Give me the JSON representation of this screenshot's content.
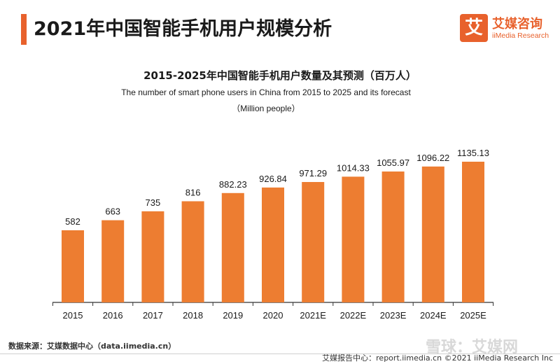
{
  "page": {
    "title": "2021年中国智能手机用户规模分析",
    "source": "数据来源：艾媒数据中心（data.iimedia.cn）",
    "footer": "艾媒报告中心：report.iimedia.cn   ©2021  iiMedia Research  Inc",
    "watermark": "雪球：艾媒网"
  },
  "logo": {
    "glyph": "艾",
    "cn": "艾媒咨询",
    "en": "iiMedia Research",
    "color": "#e8612c"
  },
  "chart_data": {
    "type": "bar",
    "title": "2015-2025年中国智能手机用户数量及其预测（百万人）",
    "subtitle": "The number of smart phone users in China from 2015 to 2025 and its forecast",
    "unit": "（Million people）",
    "categories": [
      "2015",
      "2016",
      "2017",
      "2018",
      "2019",
      "2020",
      "2021E",
      "2022E",
      "2023E",
      "2024E",
      "2025E"
    ],
    "values": [
      582,
      663,
      735,
      816,
      882.23,
      926.84,
      971.29,
      1014.33,
      1055.97,
      1096.22,
      1135.13
    ],
    "value_labels": [
      "582",
      "663",
      "735",
      "816",
      "882.23",
      "926.84",
      "971.29",
      "1014.33",
      "1055.97",
      "1096.22",
      "1135.13"
    ],
    "ylim": [
      0,
      1135.13
    ],
    "bar_color": "#ed7d31",
    "grid": false,
    "xlabel": "",
    "ylabel": ""
  }
}
